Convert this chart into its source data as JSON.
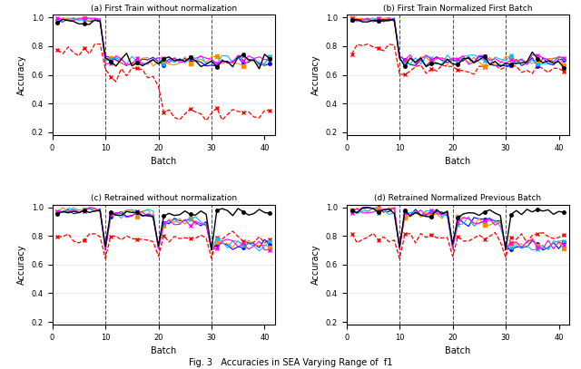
{
  "titles": [
    "(a) First Train without normalization",
    "(b) First Train Normalized First Batch",
    "(c) Retrained without normalization",
    "(d) Retrained Normalized Previous Batch"
  ],
  "fig_title": "Fig. 3   Accuracies in SEA Varying Range of  f1",
  "xlabel": "Batch",
  "ylabel": "Accuracy",
  "xlim": [
    0,
    42
  ],
  "ylim": [
    0.18,
    1.02
  ],
  "yticks": [
    0.2,
    0.4,
    0.6,
    0.8,
    1.0
  ],
  "xticks": [
    0,
    10,
    20,
    30,
    40
  ],
  "vlines": [
    10,
    20,
    30
  ],
  "colors": {
    "black": "#000000",
    "blue": "#0000ff",
    "orange": "#ff8c00",
    "cyan": "#00bfff",
    "magenta": "#ff00ff",
    "red": "#ff0000"
  }
}
